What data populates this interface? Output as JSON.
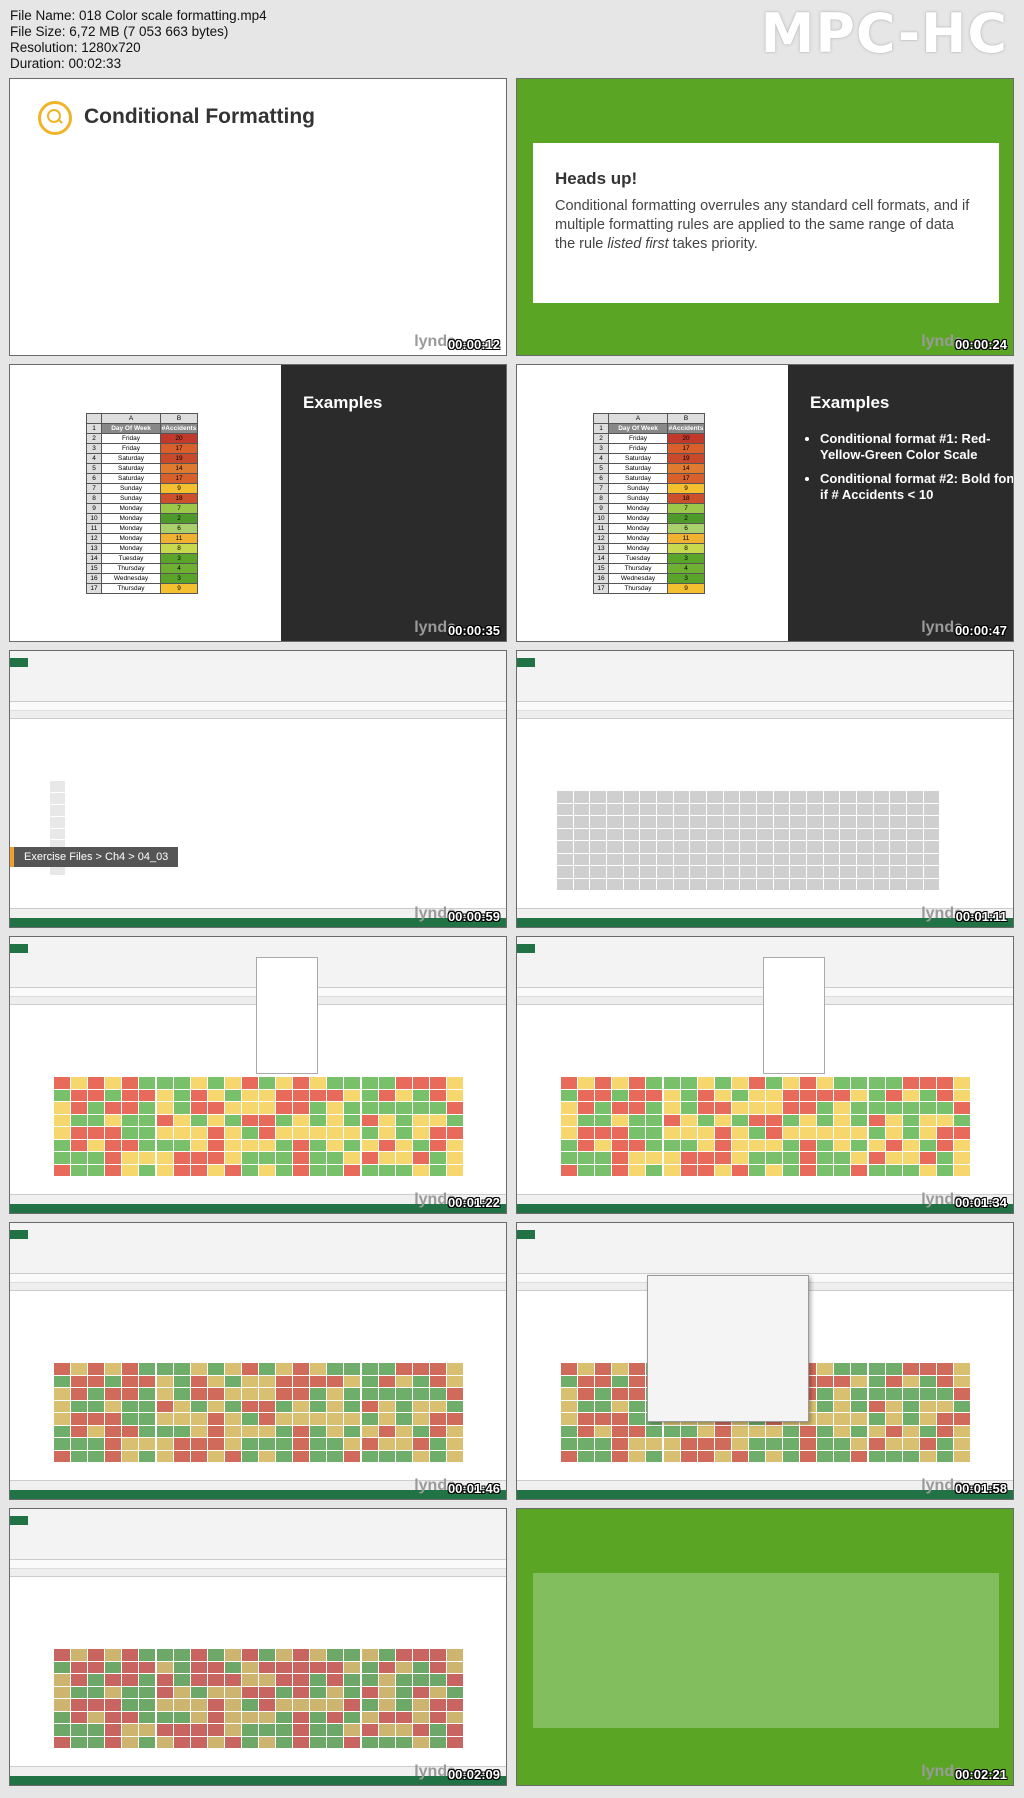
{
  "header": {
    "file_name": "File Name: 018 Color scale formatting.mp4",
    "file_size": "File Size: 6,72 MB (7 053 663 bytes)",
    "resolution": "Resolution: 1280x720",
    "duration": "Duration: 00:02:33",
    "player": "MPC-HC"
  },
  "watermark": "lynda",
  "thumbs": [
    {
      "time": "00:00:12",
      "title": "Conditional Formatting"
    },
    {
      "time": "00:00:24",
      "card_title": "Heads up!",
      "card_text_a": "Conditional formatting overrules any standard cell formats, and if multiple formatting rules are applied to the same range of data the rule ",
      "card_text_em": "listed first",
      "card_text_b": " takes priority."
    },
    {
      "time": "00:00:35",
      "title": "Examples"
    },
    {
      "time": "00:00:47",
      "title": "Examples",
      "bullets": [
        "Conditional format #1: Red-Yellow-Green Color Scale",
        "Conditional format #2: Bold font if # Accidents < 10"
      ]
    },
    {
      "time": "00:00:59",
      "badge": "Exercise Files > Ch4 > 04_03"
    },
    {
      "time": "00:01:11"
    },
    {
      "time": "00:01:22"
    },
    {
      "time": "00:01:34"
    },
    {
      "time": "00:01:46"
    },
    {
      "time": "00:01:58"
    },
    {
      "time": "00:02:09"
    },
    {
      "time": "00:02:21"
    }
  ],
  "example_table": {
    "columns": [
      "A",
      "B"
    ],
    "header": [
      "Day Of Week",
      "#Accidents"
    ],
    "rows": [
      [
        "Friday",
        "20",
        "#c0392b"
      ],
      [
        "Friday",
        "17",
        "#d9602b"
      ],
      [
        "Saturday",
        "19",
        "#c94a2b"
      ],
      [
        "Saturday",
        "14",
        "#e07a2e"
      ],
      [
        "Saturday",
        "17",
        "#d9602b"
      ],
      [
        "Sunday",
        "9",
        "#f5c02f"
      ],
      [
        "Sunday",
        "18",
        "#cc502b"
      ],
      [
        "Monday",
        "7",
        "#9cc84a"
      ],
      [
        "Monday",
        "2",
        "#4e9a2a"
      ],
      [
        "Monday",
        "6",
        "#a9d06a"
      ],
      [
        "Monday",
        "11",
        "#f0b030"
      ],
      [
        "Monday",
        "8",
        "#c9d94e"
      ],
      [
        "Tuesday",
        "3",
        "#5aa42a"
      ],
      [
        "Thursday",
        "4",
        "#6fb033"
      ],
      [
        "Wednesday",
        "3",
        "#5aa42a"
      ],
      [
        "Thursday",
        "9",
        "#f5c02f"
      ]
    ]
  },
  "colors": {
    "slide_green": "#5aa624",
    "excel_green": "#217346",
    "dark_panel": "#2b2b2b",
    "accent_yellow": "#f0b429"
  }
}
